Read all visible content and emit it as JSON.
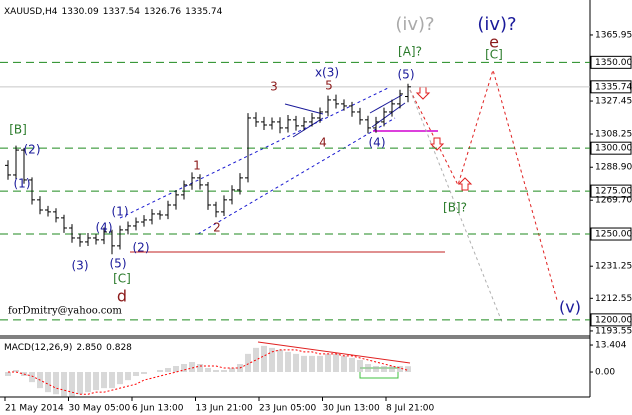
{
  "chart_data": {
    "type": "ohlc",
    "title": "XAUUSD,H4",
    "color": "#000000",
    "open": [
      1290.0,
      1284.4,
      1298.9,
      1281.5,
      1269.9,
      1264.0,
      1262.9,
      1259.4,
      1253.5,
      1247.7,
      1245.4,
      1247.7,
      1246.6,
      1251.2,
      1243.1,
      1252.4,
      1254.7,
      1257.0,
      1258.2,
      1261.7,
      1261.1,
      1266.9,
      1272.8,
      1278.6,
      1282.7,
      1278.6,
      1266.9,
      1262.9,
      1269.9,
      1275.7,
      1282.7,
      1317.6,
      1315.3,
      1313.5,
      1315.3,
      1311.8,
      1316.5,
      1313.0,
      1315.3,
      1317.6,
      1321.1,
      1328.1,
      1325.8,
      1324.6,
      1321.1,
      1316.5,
      1311.8,
      1315.3,
      1321.1,
      1325.8,
      1330.09
    ],
    "high": [
      1293.0,
      1301.5,
      1300.2,
      1283.0,
      1272.1,
      1266.4,
      1265.0,
      1261.2,
      1255.8,
      1250.3,
      1250.6,
      1249.9,
      1253.8,
      1252.5,
      1254.9,
      1257.3,
      1259.6,
      1261.0,
      1264.5,
      1263.8,
      1269.4,
      1275.6,
      1281.2,
      1285.9,
      1284.8,
      1280.3,
      1268.8,
      1272.5,
      1278.4,
      1285.5,
      1320.4,
      1320.9,
      1318.2,
      1317.9,
      1318.0,
      1319.3,
      1318.8,
      1318.1,
      1320.5,
      1323.7,
      1330.6,
      1331.2,
      1328.4,
      1327.0,
      1323.5,
      1318.9,
      1318.2,
      1323.6,
      1328.3,
      1334.0,
      1337.54
    ],
    "low": [
      1281.6,
      1282.0,
      1279.3,
      1267.2,
      1261.5,
      1260.2,
      1256.8,
      1250.7,
      1244.9,
      1242.6,
      1243.0,
      1243.9,
      1244.1,
      1238.2,
      1241.0,
      1249.8,
      1252.1,
      1254.3,
      1255.6,
      1258.4,
      1258.7,
      1264.2,
      1270.1,
      1275.8,
      1275.9,
      1264.1,
      1259.8,
      1260.5,
      1267.3,
      1273.0,
      1280.1,
      1312.4,
      1310.6,
      1310.9,
      1308.7,
      1309.1,
      1310.2,
      1310.4,
      1312.6,
      1314.8,
      1318.5,
      1323.1,
      1321.9,
      1318.3,
      1313.7,
      1308.6,
      1309.0,
      1312.7,
      1318.4,
      1323.2,
      1326.76
    ],
    "close": [
      1284.4,
      1298.9,
      1281.5,
      1269.9,
      1264.0,
      1262.9,
      1259.4,
      1253.5,
      1247.7,
      1245.4,
      1247.7,
      1246.6,
      1251.2,
      1243.1,
      1252.4,
      1254.7,
      1257.0,
      1258.2,
      1261.7,
      1261.1,
      1266.9,
      1272.8,
      1278.6,
      1282.7,
      1278.6,
      1266.9,
      1262.9,
      1269.9,
      1275.7,
      1282.7,
      1317.6,
      1315.3,
      1313.5,
      1315.3,
      1311.8,
      1316.5,
      1313.0,
      1315.3,
      1317.6,
      1321.1,
      1328.1,
      1325.8,
      1324.6,
      1321.1,
      1316.5,
      1311.8,
      1315.3,
      1321.1,
      1325.8,
      1331.6,
      1335.74
    ],
    "ylim": [
      1190.6,
      1383.4
    ],
    "yticks": [
      1365.95,
      {
        "value": 1350,
        "label": "1350.00"
      },
      1327.45,
      1308.25,
      {
        "value": 1300,
        "label": "1300.00"
      },
      {
        "value": 1288.9,
        "label": "1288.90"
      },
      {
        "value": 1275,
        "label": "1275.00"
      },
      {
        "value": 1269.7,
        "label": "1269.70"
      },
      {
        "value": 1250,
        "label": "1250.00"
      },
      1231.25,
      1212.55,
      {
        "value": 1200,
        "label": "1200.00"
      },
      1193.55
    ],
    "levels": [
      1350,
      1300,
      1275,
      1250,
      1200
    ],
    "level_color": "#1f8a1f",
    "x_labels": [
      "21 May 2014",
      "30 May 05:00",
      "6 Jun 13:00",
      "13 Jun 21:00",
      "23 Jun 05:00",
      "30 Jun 13:00",
      "8 Jul 21:00"
    ],
    "annotations": [
      {
        "text": "(iv)?",
        "color": "#aaaaaa"
      },
      {
        "text": "(iv)?",
        "color": "#1a1a9a"
      },
      {
        "text": "e",
        "color": "#8b1a1a"
      },
      {
        "text": "[A]?",
        "color": "#2a7a2a"
      },
      {
        "text": "[C]",
        "color": "#2a7a2a"
      },
      {
        "text": "x(3)",
        "color": "#1a1a9a"
      },
      {
        "text": "(5)",
        "color": "#1a1a9a"
      },
      {
        "text": "3",
        "color": "#8b1a1a"
      },
      {
        "text": "5",
        "color": "#8b1a1a"
      },
      {
        "text": "4",
        "color": "#8b1a1a"
      },
      {
        "text": "(4)",
        "color": "#1a1a9a"
      },
      {
        "text": "1",
        "color": "#8b1a1a"
      },
      {
        "text": "2",
        "color": "#8b1a1a"
      },
      {
        "text": "[B]",
        "color": "#2a7a2a"
      },
      {
        "text": "(2)",
        "color": "#1a1a9a"
      },
      {
        "text": "(1)",
        "color": "#1a1a9a"
      },
      {
        "text": "(1)",
        "color": "#1a1a9a"
      },
      {
        "text": "(4)",
        "color": "#1a1a9a"
      },
      {
        "text": "(2)",
        "color": "#1a1a9a"
      },
      {
        "text": "(3)",
        "color": "#1a1a9a"
      },
      {
        "text": "(5)",
        "color": "#1a1a9a"
      },
      {
        "text": "[C]",
        "color": "#2a7a2a"
      },
      {
        "text": "d",
        "color": "#8b1a1a"
      },
      {
        "text": "[B]?",
        "color": "#2a7a2a"
      },
      {
        "text": "(v)",
        "color": "#1a1a9a"
      }
    ],
    "watermark": "forDmitry@yahoo.com",
    "indicator": {
      "type": "macd",
      "title": "MACD(12,26,9)",
      "current_label": "2.850",
      "histogram": {
        "color": "#b0b0b0",
        "values": [
          -2,
          1,
          -2,
          -5,
          -8,
          -10,
          -11,
          -12,
          -12,
          -11,
          -10,
          -9,
          -8,
          -8,
          -6,
          -4,
          -2,
          -1,
          0,
          1,
          2,
          3,
          4,
          5,
          4,
          2,
          1,
          1,
          2,
          4,
          9,
          12,
          13,
          12,
          11,
          10,
          9,
          8,
          8,
          8,
          9,
          9,
          8,
          7,
          6,
          4,
          3,
          3,
          3,
          3,
          2.85
        ]
      },
      "signal": {
        "color": "#ff0000",
        "values": [
          0,
          0,
          -1,
          -2,
          -4,
          -6,
          -8,
          -9,
          -10,
          -11,
          -11,
          -10,
          -10,
          -9,
          -8,
          -7,
          -6,
          -4,
          -3,
          -2,
          -1,
          0,
          1,
          2,
          3,
          3,
          3,
          2,
          2,
          2,
          4,
          6,
          8,
          10,
          11,
          11,
          11,
          10,
          10,
          9,
          9,
          9,
          8,
          8,
          7,
          6,
          5,
          4,
          3,
          2,
          0.828
        ]
      },
      "ylim": [
        -11.4,
        15.9
      ],
      "yticks": [
        13.404,
        {
          "value": 0,
          "label": "0.00"
        }
      ]
    }
  }
}
